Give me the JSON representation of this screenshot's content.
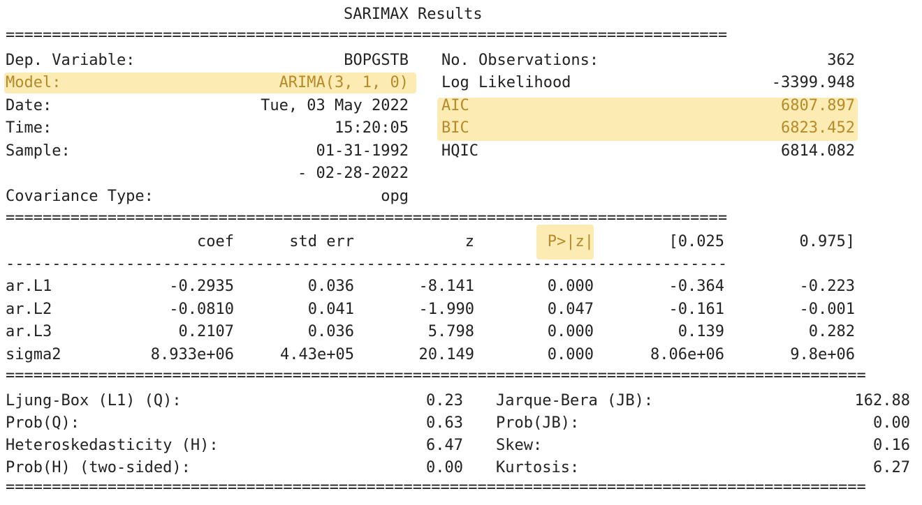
{
  "title": "SARIMAX Results",
  "rules": {
    "double": "==============================================================================",
    "double_long": "=============================================================================================",
    "single": "------------------------------------------------------------------------------"
  },
  "summary": {
    "dep_variable_label": "Dep. Variable:",
    "dep_variable": "BOPGSTB",
    "model_label": "Model:",
    "model": "ARIMA(3, 1, 0)",
    "date_label": "Date:",
    "date": "Tue, 03 May 2022",
    "time_label": "Time:",
    "time": "15:20:05",
    "sample_label": "Sample:",
    "sample_start": "01-31-1992",
    "sample_end": "- 02-28-2022",
    "cov_label": "Covariance Type:",
    "cov": "opg",
    "nobs_label": "No. Observations:",
    "nobs": "362",
    "llf_label": "Log Likelihood",
    "llf": "-3399.948",
    "aic_label": "AIC",
    "aic": "6807.897",
    "bic_label": "BIC",
    "bic": "6823.452",
    "hqic_label": "HQIC",
    "hqic": "6814.082"
  },
  "coef_table": {
    "headers": [
      "coef",
      "std err",
      "z",
      "P>|z|",
      "[0.025",
      "0.975]"
    ],
    "rows": [
      {
        "name": "ar.L1",
        "values": [
          "-0.2935",
          "0.036",
          "-8.141",
          "0.000",
          "-0.364",
          "-0.223"
        ]
      },
      {
        "name": "ar.L2",
        "values": [
          "-0.0810",
          "0.041",
          "-1.990",
          "0.047",
          "-0.161",
          "-0.001"
        ]
      },
      {
        "name": "ar.L3",
        "values": [
          "0.2107",
          "0.036",
          "5.798",
          "0.000",
          "0.139",
          "0.282"
        ]
      },
      {
        "name": "sigma2",
        "values": [
          "8.933e+06",
          "4.43e+05",
          "20.149",
          "0.000",
          "8.06e+06",
          "9.8e+06"
        ]
      }
    ]
  },
  "diagnostics": {
    "left": [
      {
        "label": "Ljung-Box (L1) (Q):",
        "value": "0.23"
      },
      {
        "label": "Prob(Q):",
        "value": "0.63"
      },
      {
        "label": "Heteroskedasticity (H):",
        "value": "6.47"
      },
      {
        "label": "Prob(H) (two-sided):",
        "value": "0.00"
      }
    ],
    "right": [
      {
        "label": "Jarque-Bera (JB):",
        "value": "162.88"
      },
      {
        "label": "Prob(JB):",
        "value": "0.00"
      },
      {
        "label": "Skew:",
        "value": "0.16"
      },
      {
        "label": "Kurtosis:",
        "value": "6.27"
      }
    ]
  },
  "colors": {
    "highlight": "#fbe7a6",
    "highlight_text": "#b58a2a",
    "text": "#222222"
  }
}
